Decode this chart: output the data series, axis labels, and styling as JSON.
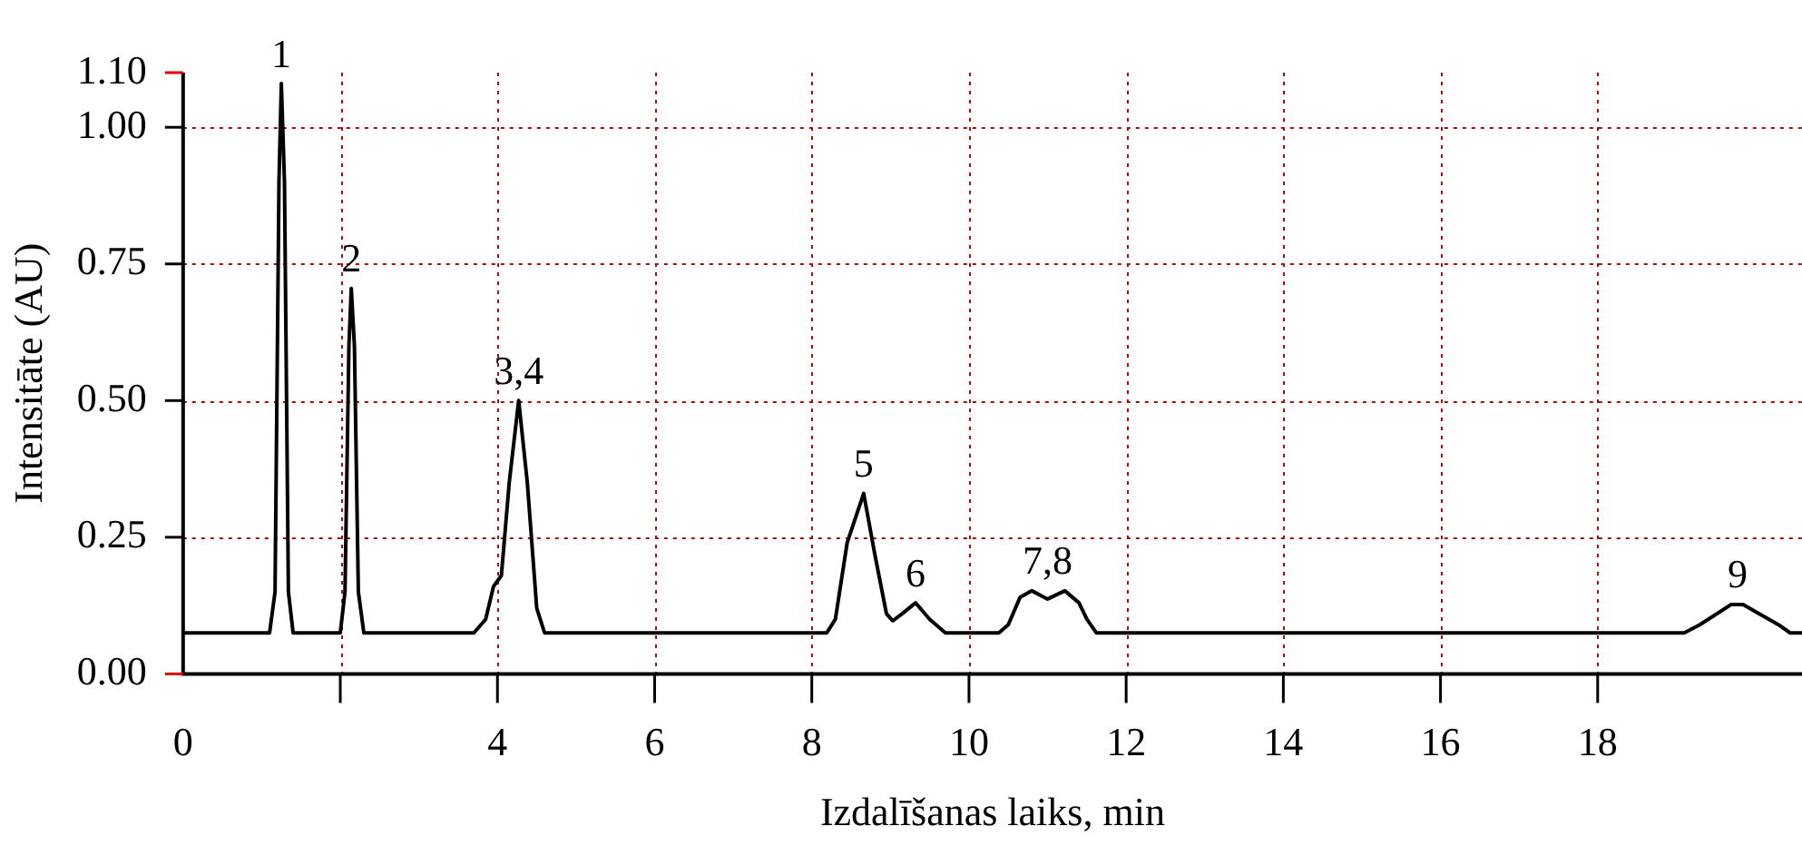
{
  "chart_data": {
    "type": "line",
    "xlabel": "Izdalīšanas laiks, min",
    "ylabel": "Intensitāte (AU)",
    "x": [
      0,
      1.1,
      1.17,
      1.22,
      1.25,
      1.29,
      1.34,
      1.4,
      2.0,
      2.06,
      2.11,
      2.14,
      2.18,
      2.23,
      2.3,
      3.7,
      3.85,
      3.95,
      4.05,
      4.15,
      4.27,
      4.38,
      4.5,
      4.6,
      8.19,
      8.3,
      8.45,
      8.66,
      8.8,
      8.95,
      9.03,
      9.15,
      9.32,
      9.5,
      9.7,
      10.38,
      10.5,
      10.65,
      10.8,
      11.0,
      11.22,
      11.4,
      11.5,
      11.62,
      19.1,
      19.3,
      19.7,
      19.85,
      20.3,
      20.45,
      20.6
    ],
    "series": [
      {
        "color": "#000000",
        "values": [
          0.075,
          0.075,
          0.15,
          0.9,
          1.08,
          0.9,
          0.15,
          0.075,
          0.075,
          0.15,
          0.6,
          0.705,
          0.6,
          0.15,
          0.075,
          0.075,
          0.1,
          0.16,
          0.18,
          0.35,
          0.5,
          0.35,
          0.12,
          0.075,
          0.075,
          0.1,
          0.24,
          0.33,
          0.22,
          0.11,
          0.097,
          0.11,
          0.13,
          0.1,
          0.075,
          0.075,
          0.09,
          0.14,
          0.152,
          0.137,
          0.152,
          0.13,
          0.1,
          0.075,
          0.075,
          0.09,
          0.127,
          0.127,
          0.09,
          0.075,
          0.075
        ]
      }
    ],
    "xlim": [
      0,
      20.6
    ],
    "xticks": [
      0,
      {
        "value": 2,
        "label": null
      },
      4,
      6,
      8,
      10,
      12,
      14,
      16,
      18
    ],
    "ylim": [
      0,
      1.1
    ],
    "yticks": [
      {
        "value": 0,
        "label": "0.00"
      },
      {
        "value": 0.25,
        "label": "0.25"
      },
      {
        "value": 0.5,
        "label": "0.50"
      },
      {
        "value": 0.75,
        "label": "0.75"
      },
      {
        "value": 1,
        "label": "1.00"
      },
      {
        "value": 1.1,
        "label": "1.10"
      }
    ],
    "grid": true,
    "legend": false,
    "marker": "none",
    "line_style": "solid",
    "annotations": [
      {
        "text": "1",
        "x": 1.25,
        "y": 1.08
      },
      {
        "text": "2",
        "x": 2.14,
        "y": 0.705
      },
      {
        "text": "3,4",
        "x": 4.27,
        "y": 0.5
      },
      {
        "text": "5",
        "x": 8.66,
        "y": 0.33
      },
      {
        "text": "6",
        "x": 9.32,
        "y": 0.13
      },
      {
        "text": "7,8",
        "x": 11.0,
        "y": 0.152
      },
      {
        "text": "9",
        "x": 19.78,
        "y": 0.127
      }
    ]
  }
}
